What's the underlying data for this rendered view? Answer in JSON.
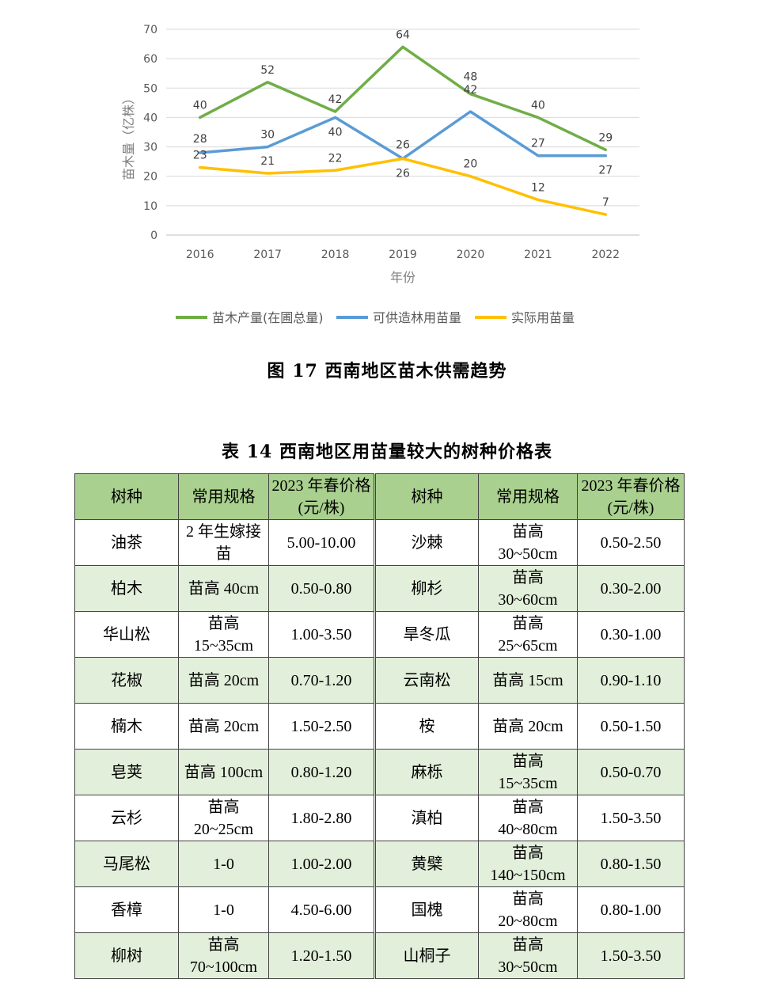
{
  "figure": {
    "caption": "图 17  西南地区苗木供需趋势"
  },
  "chart_data": {
    "type": "line",
    "x": [
      "2016",
      "2017",
      "2018",
      "2019",
      "2020",
      "2021",
      "2022"
    ],
    "xlabel": "年份",
    "ylabel": "苗木量（亿株）",
    "ylim": [
      0,
      70
    ],
    "yticks": [
      0,
      10,
      20,
      30,
      40,
      50,
      60,
      70
    ],
    "grid": true,
    "legend_position": "bottom",
    "series": [
      {
        "name": "苗木产量(在圃总量)",
        "color": "#70ad47",
        "values": [
          40,
          52,
          42,
          64,
          48,
          40,
          29
        ]
      },
      {
        "name": "可供造林用苗量",
        "color": "#5b9bd5",
        "values": [
          28,
          30,
          40,
          26,
          42,
          27,
          27
        ]
      },
      {
        "name": "实际用苗量",
        "color": "#ffc000",
        "values": [
          23,
          21,
          22,
          26,
          20,
          12,
          7
        ]
      }
    ]
  },
  "table": {
    "caption": "表 14  西南地区用苗量较大的树种价格表",
    "headers": [
      "树种",
      "常用规格",
      "2023 年春价格(元/株)",
      "树种",
      "常用规格",
      "2023 年春价格(元/株)"
    ],
    "header_color": "#a9d08e",
    "alt_row_color": "#e2efda",
    "rows": [
      [
        "油茶",
        "2 年生嫁接苗",
        "5.00-10.00",
        "沙棘",
        "苗高 30~50cm",
        "0.50-2.50"
      ],
      [
        "柏木",
        "苗高 40cm",
        "0.50-0.80",
        "柳杉",
        "苗高 30~60cm",
        "0.30-2.00"
      ],
      [
        "华山松",
        "苗高 15~35cm",
        "1.00-3.50",
        "旱冬瓜",
        "苗高 25~65cm",
        "0.30-1.00"
      ],
      [
        "花椒",
        "苗高 20cm",
        "0.70-1.20",
        "云南松",
        "苗高 15cm",
        "0.90-1.10"
      ],
      [
        "楠木",
        "苗高 20cm",
        "1.50-2.50",
        "桉",
        "苗高 20cm",
        "0.50-1.50"
      ],
      [
        "皂荚",
        "苗高 100cm",
        "0.80-1.20",
        "麻栎",
        "苗高 15~35cm",
        "0.50-0.70"
      ],
      [
        "云杉",
        "苗高 20~25cm",
        "1.80-2.80",
        "滇柏",
        "苗高 40~80cm",
        "1.50-3.50"
      ],
      [
        "马尾松",
        "1-0",
        "1.00-2.00",
        "黄檗",
        "苗高 140~150cm",
        "0.80-1.50"
      ],
      [
        "香樟",
        "1-0",
        "4.50-6.00",
        "国槐",
        "苗高 20~80cm",
        "0.80-1.00"
      ],
      [
        "柳树",
        "苗高 70~100cm",
        "1.20-1.50",
        "山桐子",
        "苗高 30~50cm",
        "1.50-3.50"
      ]
    ]
  }
}
